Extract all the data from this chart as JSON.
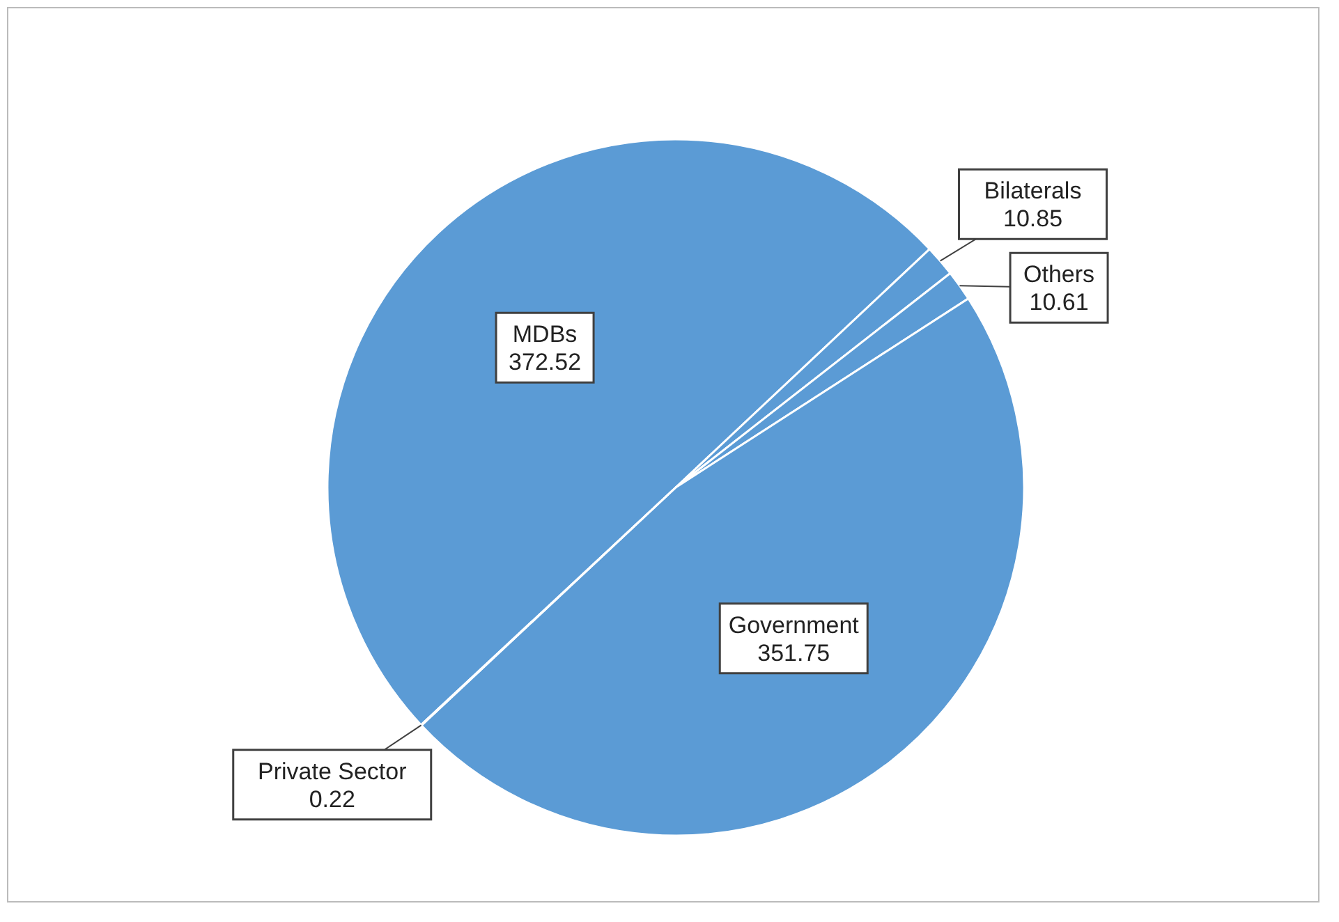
{
  "chart_data": {
    "type": "pie",
    "categories": [
      "MDBs",
      "Bilaterals",
      "Others",
      "Government",
      "Private Sector"
    ],
    "values": [
      372.52,
      10.85,
      10.61,
      351.75,
      0.22
    ],
    "colors": [
      "#5b9bd5",
      "#5b9bd5",
      "#5b9bd5",
      "#5b9bd5",
      "#5b9bd5"
    ],
    "data_labels": true,
    "legend": false
  }
}
